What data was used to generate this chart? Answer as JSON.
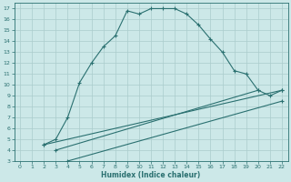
{
  "xlabel": "Humidex (Indice chaleur)",
  "bg_color": "#cce8e8",
  "grid_color": "#aacccc",
  "line_color": "#2a7070",
  "xlim": [
    -0.5,
    22.5
  ],
  "ylim": [
    3,
    17.5
  ],
  "xticks": [
    0,
    1,
    2,
    3,
    4,
    5,
    6,
    7,
    8,
    9,
    10,
    11,
    12,
    13,
    14,
    15,
    16,
    17,
    18,
    19,
    20,
    21,
    22
  ],
  "yticks": [
    3,
    4,
    5,
    6,
    7,
    8,
    9,
    10,
    11,
    12,
    13,
    14,
    15,
    16,
    17
  ],
  "main_x": [
    2,
    3,
    4,
    5,
    6,
    7,
    8,
    9,
    10,
    11,
    12,
    13,
    14,
    15,
    16,
    17,
    18,
    19,
    20,
    21,
    22
  ],
  "main_y": [
    4.5,
    5.0,
    7.0,
    10.2,
    12.0,
    13.5,
    14.5,
    16.8,
    16.5,
    17.0,
    17.0,
    17.0,
    16.5,
    15.5,
    14.2,
    13.0,
    11.3,
    11.0,
    9.5,
    9.0,
    9.5
  ],
  "line1_x": [
    2,
    22
  ],
  "line1_y": [
    4.5,
    9.5
  ],
  "line2_x": [
    3,
    20
  ],
  "line2_y": [
    4.0,
    9.5
  ],
  "line3_x": [
    4,
    22
  ],
  "line3_y": [
    3.0,
    8.5
  ]
}
